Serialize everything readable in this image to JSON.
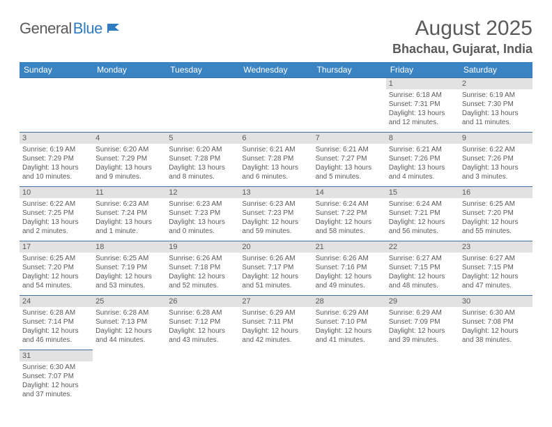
{
  "logo": {
    "text1": "General",
    "text2": "Blue"
  },
  "title": "August 2025",
  "location": "Bhachau, Gujarat, India",
  "colors": {
    "header_bg": "#3b84c4",
    "header_text": "#ffffff",
    "daynum_bg": "#e2e2e2",
    "border": "#3b6fa3",
    "text": "#5a5a5a",
    "logo_blue": "#2f7bbf"
  },
  "fonts": {
    "title_pt": 30,
    "location_pt": 18,
    "dayhead_pt": 12,
    "body_pt": 10
  },
  "day_headers": [
    "Sunday",
    "Monday",
    "Tuesday",
    "Wednesday",
    "Thursday",
    "Friday",
    "Saturday"
  ],
  "weeks": [
    [
      null,
      null,
      null,
      null,
      null,
      {
        "n": "1",
        "sunrise": "Sunrise: 6:18 AM",
        "sunset": "Sunset: 7:31 PM",
        "daylight": "Daylight: 13 hours and 12 minutes."
      },
      {
        "n": "2",
        "sunrise": "Sunrise: 6:19 AM",
        "sunset": "Sunset: 7:30 PM",
        "daylight": "Daylight: 13 hours and 11 minutes."
      }
    ],
    [
      {
        "n": "3",
        "sunrise": "Sunrise: 6:19 AM",
        "sunset": "Sunset: 7:29 PM",
        "daylight": "Daylight: 13 hours and 10 minutes."
      },
      {
        "n": "4",
        "sunrise": "Sunrise: 6:20 AM",
        "sunset": "Sunset: 7:29 PM",
        "daylight": "Daylight: 13 hours and 9 minutes."
      },
      {
        "n": "5",
        "sunrise": "Sunrise: 6:20 AM",
        "sunset": "Sunset: 7:28 PM",
        "daylight": "Daylight: 13 hours and 8 minutes."
      },
      {
        "n": "6",
        "sunrise": "Sunrise: 6:21 AM",
        "sunset": "Sunset: 7:28 PM",
        "daylight": "Daylight: 13 hours and 6 minutes."
      },
      {
        "n": "7",
        "sunrise": "Sunrise: 6:21 AM",
        "sunset": "Sunset: 7:27 PM",
        "daylight": "Daylight: 13 hours and 5 minutes."
      },
      {
        "n": "8",
        "sunrise": "Sunrise: 6:21 AM",
        "sunset": "Sunset: 7:26 PM",
        "daylight": "Daylight: 13 hours and 4 minutes."
      },
      {
        "n": "9",
        "sunrise": "Sunrise: 6:22 AM",
        "sunset": "Sunset: 7:26 PM",
        "daylight": "Daylight: 13 hours and 3 minutes."
      }
    ],
    [
      {
        "n": "10",
        "sunrise": "Sunrise: 6:22 AM",
        "sunset": "Sunset: 7:25 PM",
        "daylight": "Daylight: 13 hours and 2 minutes."
      },
      {
        "n": "11",
        "sunrise": "Sunrise: 6:23 AM",
        "sunset": "Sunset: 7:24 PM",
        "daylight": "Daylight: 13 hours and 1 minute."
      },
      {
        "n": "12",
        "sunrise": "Sunrise: 6:23 AM",
        "sunset": "Sunset: 7:23 PM",
        "daylight": "Daylight: 13 hours and 0 minutes."
      },
      {
        "n": "13",
        "sunrise": "Sunrise: 6:23 AM",
        "sunset": "Sunset: 7:23 PM",
        "daylight": "Daylight: 12 hours and 59 minutes."
      },
      {
        "n": "14",
        "sunrise": "Sunrise: 6:24 AM",
        "sunset": "Sunset: 7:22 PM",
        "daylight": "Daylight: 12 hours and 58 minutes."
      },
      {
        "n": "15",
        "sunrise": "Sunrise: 6:24 AM",
        "sunset": "Sunset: 7:21 PM",
        "daylight": "Daylight: 12 hours and 56 minutes."
      },
      {
        "n": "16",
        "sunrise": "Sunrise: 6:25 AM",
        "sunset": "Sunset: 7:20 PM",
        "daylight": "Daylight: 12 hours and 55 minutes."
      }
    ],
    [
      {
        "n": "17",
        "sunrise": "Sunrise: 6:25 AM",
        "sunset": "Sunset: 7:20 PM",
        "daylight": "Daylight: 12 hours and 54 minutes."
      },
      {
        "n": "18",
        "sunrise": "Sunrise: 6:25 AM",
        "sunset": "Sunset: 7:19 PM",
        "daylight": "Daylight: 12 hours and 53 minutes."
      },
      {
        "n": "19",
        "sunrise": "Sunrise: 6:26 AM",
        "sunset": "Sunset: 7:18 PM",
        "daylight": "Daylight: 12 hours and 52 minutes."
      },
      {
        "n": "20",
        "sunrise": "Sunrise: 6:26 AM",
        "sunset": "Sunset: 7:17 PM",
        "daylight": "Daylight: 12 hours and 51 minutes."
      },
      {
        "n": "21",
        "sunrise": "Sunrise: 6:26 AM",
        "sunset": "Sunset: 7:16 PM",
        "daylight": "Daylight: 12 hours and 49 minutes."
      },
      {
        "n": "22",
        "sunrise": "Sunrise: 6:27 AM",
        "sunset": "Sunset: 7:15 PM",
        "daylight": "Daylight: 12 hours and 48 minutes."
      },
      {
        "n": "23",
        "sunrise": "Sunrise: 6:27 AM",
        "sunset": "Sunset: 7:15 PM",
        "daylight": "Daylight: 12 hours and 47 minutes."
      }
    ],
    [
      {
        "n": "24",
        "sunrise": "Sunrise: 6:28 AM",
        "sunset": "Sunset: 7:14 PM",
        "daylight": "Daylight: 12 hours and 46 minutes."
      },
      {
        "n": "25",
        "sunrise": "Sunrise: 6:28 AM",
        "sunset": "Sunset: 7:13 PM",
        "daylight": "Daylight: 12 hours and 44 minutes."
      },
      {
        "n": "26",
        "sunrise": "Sunrise: 6:28 AM",
        "sunset": "Sunset: 7:12 PM",
        "daylight": "Daylight: 12 hours and 43 minutes."
      },
      {
        "n": "27",
        "sunrise": "Sunrise: 6:29 AM",
        "sunset": "Sunset: 7:11 PM",
        "daylight": "Daylight: 12 hours and 42 minutes."
      },
      {
        "n": "28",
        "sunrise": "Sunrise: 6:29 AM",
        "sunset": "Sunset: 7:10 PM",
        "daylight": "Daylight: 12 hours and 41 minutes."
      },
      {
        "n": "29",
        "sunrise": "Sunrise: 6:29 AM",
        "sunset": "Sunset: 7:09 PM",
        "daylight": "Daylight: 12 hours and 39 minutes."
      },
      {
        "n": "30",
        "sunrise": "Sunrise: 6:30 AM",
        "sunset": "Sunset: 7:08 PM",
        "daylight": "Daylight: 12 hours and 38 minutes."
      }
    ],
    [
      {
        "n": "31",
        "sunrise": "Sunrise: 6:30 AM",
        "sunset": "Sunset: 7:07 PM",
        "daylight": "Daylight: 12 hours and 37 minutes."
      },
      null,
      null,
      null,
      null,
      null,
      null
    ]
  ]
}
